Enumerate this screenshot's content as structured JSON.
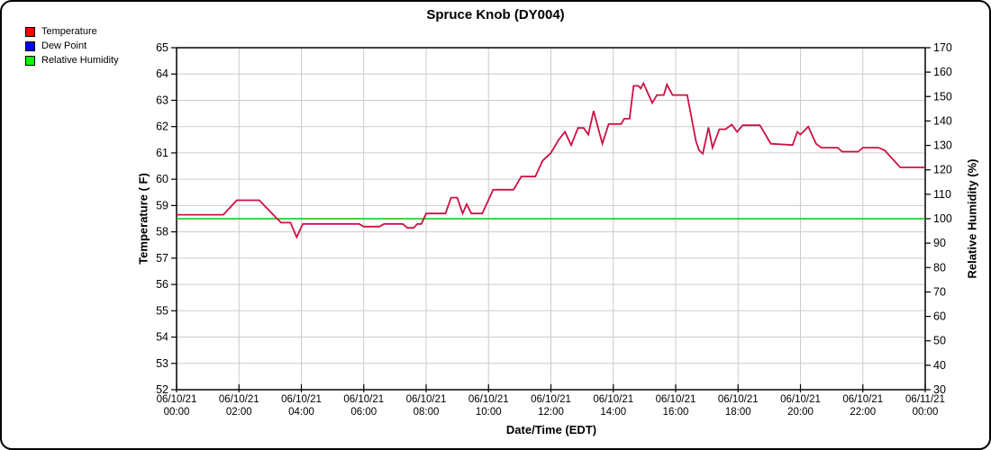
{
  "title": "Spruce Knob (DY004)",
  "legend": {
    "items": [
      {
        "label": "Temperature",
        "color": "#FF0000"
      },
      {
        "label": "Dew Point",
        "color": "#0000FF"
      },
      {
        "label": "Relative Humidity",
        "color": "#00FF00"
      }
    ]
  },
  "axes": {
    "left": {
      "title": "Temperature ( F)",
      "ticks": [
        52,
        53,
        54,
        55,
        56,
        57,
        58,
        59,
        60,
        61,
        62,
        63,
        64,
        65
      ]
    },
    "right": {
      "title": "Relative Humidity (%)",
      "ticks": [
        30,
        40,
        50,
        60,
        70,
        80,
        90,
        100,
        110,
        120,
        130,
        140,
        150,
        160,
        170
      ]
    },
    "x": {
      "title": "Date/Time (EDT)",
      "range_hours": [
        0,
        24
      ],
      "ticks": [
        {
          "date": "06/10/21",
          "time": "00:00"
        },
        {
          "date": "06/10/21",
          "time": "02:00"
        },
        {
          "date": "06/10/21",
          "time": "04:00"
        },
        {
          "date": "06/10/21",
          "time": "06:00"
        },
        {
          "date": "06/10/21",
          "time": "08:00"
        },
        {
          "date": "06/10/21",
          "time": "10:00"
        },
        {
          "date": "06/10/21",
          "time": "12:00"
        },
        {
          "date": "06/10/21",
          "time": "14:00"
        },
        {
          "date": "06/10/21",
          "time": "16:00"
        },
        {
          "date": "06/10/21",
          "time": "18:00"
        },
        {
          "date": "06/10/21",
          "time": "20:00"
        },
        {
          "date": "06/10/21",
          "time": "22:00"
        },
        {
          "date": "06/11/21",
          "time": "00:00"
        }
      ]
    }
  },
  "chart_data": {
    "type": "line",
    "title": "Spruce Knob (DY004)",
    "xlabel": "Date/Time (EDT)",
    "x_unit": "hours after 06/10/21 00:00 EDT",
    "ylabel_left": "Temperature ( F)",
    "ylabel_right": "Relative Humidity (%)",
    "ylim_left": [
      52,
      65
    ],
    "ylim_right": [
      30,
      170
    ],
    "grid": true,
    "legend_position": "top-left outside",
    "series": [
      {
        "name": "Temperature",
        "axis": "left",
        "color": "#CC1144",
        "points": [
          [
            0,
            58.65
          ],
          [
            1.5,
            58.65
          ],
          [
            1.93,
            59.2
          ],
          [
            2.65,
            59.2
          ],
          [
            3.1,
            58.65
          ],
          [
            3.35,
            58.35
          ],
          [
            3.65,
            58.35
          ],
          [
            3.85,
            57.8
          ],
          [
            4.05,
            58.3
          ],
          [
            5.85,
            58.3
          ],
          [
            6.0,
            58.2
          ],
          [
            6.5,
            58.2
          ],
          [
            6.65,
            58.3
          ],
          [
            7.25,
            58.3
          ],
          [
            7.4,
            58.15
          ],
          [
            7.6,
            58.15
          ],
          [
            7.72,
            58.3
          ],
          [
            7.85,
            58.3
          ],
          [
            8.0,
            58.7
          ],
          [
            8.62,
            58.7
          ],
          [
            8.8,
            59.3
          ],
          [
            9.0,
            59.3
          ],
          [
            9.17,
            58.7
          ],
          [
            9.3,
            59.05
          ],
          [
            9.45,
            58.7
          ],
          [
            9.8,
            58.7
          ],
          [
            10.15,
            59.6
          ],
          [
            10.8,
            59.6
          ],
          [
            11.05,
            60.1
          ],
          [
            11.5,
            60.1
          ],
          [
            11.73,
            60.7
          ],
          [
            12.0,
            61.0
          ],
          [
            12.25,
            61.5
          ],
          [
            12.45,
            61.8
          ],
          [
            12.65,
            61.3
          ],
          [
            12.87,
            61.95
          ],
          [
            13.05,
            61.95
          ],
          [
            13.2,
            61.7
          ],
          [
            13.37,
            62.6
          ],
          [
            13.65,
            61.35
          ],
          [
            13.85,
            62.1
          ],
          [
            14.25,
            62.1
          ],
          [
            14.35,
            62.3
          ],
          [
            14.52,
            62.3
          ],
          [
            14.65,
            63.55
          ],
          [
            14.8,
            63.55
          ],
          [
            14.88,
            63.45
          ],
          [
            14.97,
            63.65
          ],
          [
            15.1,
            63.3
          ],
          [
            15.25,
            62.9
          ],
          [
            15.4,
            63.2
          ],
          [
            15.62,
            63.2
          ],
          [
            15.72,
            63.6
          ],
          [
            15.9,
            63.2
          ],
          [
            16.37,
            63.2
          ],
          [
            16.65,
            61.45
          ],
          [
            16.75,
            61.1
          ],
          [
            16.87,
            60.97
          ],
          [
            17.05,
            61.97
          ],
          [
            17.18,
            61.2
          ],
          [
            17.4,
            61.9
          ],
          [
            17.6,
            61.9
          ],
          [
            17.8,
            62.08
          ],
          [
            17.97,
            61.8
          ],
          [
            18.15,
            62.05
          ],
          [
            18.7,
            62.05
          ],
          [
            19.05,
            61.35
          ],
          [
            19.75,
            61.3
          ],
          [
            19.9,
            61.8
          ],
          [
            20.0,
            61.7
          ],
          [
            20.25,
            62.0
          ],
          [
            20.5,
            61.35
          ],
          [
            20.67,
            61.2
          ],
          [
            21.2,
            61.2
          ],
          [
            21.33,
            61.05
          ],
          [
            21.85,
            61.05
          ],
          [
            22.0,
            61.2
          ],
          [
            22.5,
            61.2
          ],
          [
            22.7,
            61.1
          ],
          [
            22.85,
            60.9
          ],
          [
            23.2,
            60.45
          ],
          [
            24,
            60.45
          ]
        ]
      },
      {
        "name": "Dew Point",
        "axis": "left",
        "color": "#0000FF",
        "points": []
      },
      {
        "name": "Relative Humidity",
        "axis": "right",
        "color": "#00CC00",
        "points": [
          [
            0,
            100
          ],
          [
            24,
            100
          ]
        ]
      }
    ]
  },
  "style": {
    "gridline_color": "#CCCCCC",
    "frame_color": "#000000"
  }
}
